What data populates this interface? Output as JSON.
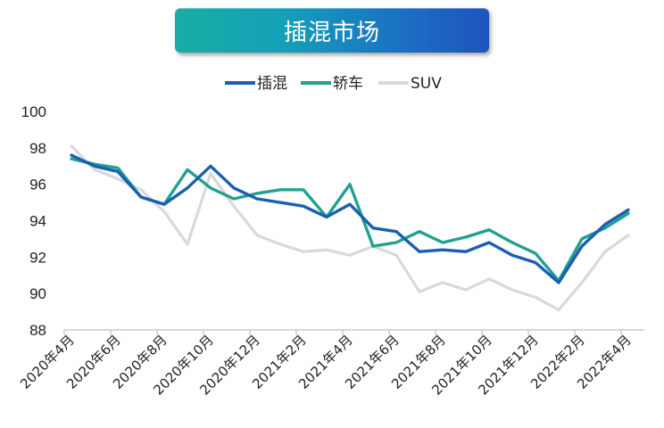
{
  "title": "插混市场",
  "colors": {
    "title_banner_start": "#19ada3",
    "title_banner_end": "#1d55bd"
  },
  "chart_data": {
    "type": "line",
    "title": "插混市场",
    "xlabel": "",
    "ylabel": "",
    "ylim": [
      88,
      100
    ],
    "yticks": [
      88,
      90,
      92,
      94,
      96,
      98,
      100
    ],
    "grid": false,
    "legend_position": "top",
    "x": [
      "2020年4月",
      "2020年5月",
      "2020年6月",
      "2020年7月",
      "2020年8月",
      "2020年9月",
      "2020年10月",
      "2020年11月",
      "2020年12月",
      "2021年1月",
      "2021年2月",
      "2021年3月",
      "2021年4月",
      "2021年5月",
      "2021年6月",
      "2021年7月",
      "2021年8月",
      "2021年9月",
      "2021年10月",
      "2021年11月",
      "2021年12月",
      "2022年1月",
      "2022年2月",
      "2022年3月",
      "2022年4月"
    ],
    "x_tick_labels": [
      "2020年4月",
      "2020年6月",
      "2020年8月",
      "2020年10月",
      "2020年12月",
      "2021年2月",
      "2021年4月",
      "2021年6月",
      "2021年8月",
      "2021年10月",
      "2021年12月",
      "2022年2月",
      "2022年4月"
    ],
    "series": [
      {
        "name": "插混",
        "color": "#1a5fb0",
        "values": [
          97.6,
          97.0,
          96.7,
          95.3,
          94.9,
          95.8,
          97.0,
          95.8,
          95.2,
          95.0,
          94.8,
          94.2,
          94.9,
          93.6,
          93.4,
          92.3,
          92.4,
          92.3,
          92.8,
          92.1,
          91.7,
          90.6,
          92.6,
          93.8,
          94.6
        ]
      },
      {
        "name": "轿车",
        "color": "#22a091",
        "values": [
          97.4,
          97.1,
          96.9,
          95.3,
          94.9,
          96.8,
          95.8,
          95.2,
          95.5,
          95.7,
          95.7,
          94.2,
          96.0,
          92.6,
          92.8,
          93.4,
          92.8,
          93.1,
          93.5,
          92.8,
          92.2,
          90.7,
          93.0,
          93.6,
          94.4
        ]
      },
      {
        "name": "SUV",
        "color": "#d9d9d9",
        "values": [
          98.1,
          96.8,
          96.3,
          95.7,
          94.5,
          92.7,
          96.6,
          94.8,
          93.2,
          92.7,
          92.3,
          92.4,
          92.1,
          92.6,
          92.1,
          90.1,
          90.6,
          90.2,
          90.8,
          90.2,
          89.8,
          89.1,
          90.6,
          92.3,
          93.2
        ]
      }
    ]
  }
}
